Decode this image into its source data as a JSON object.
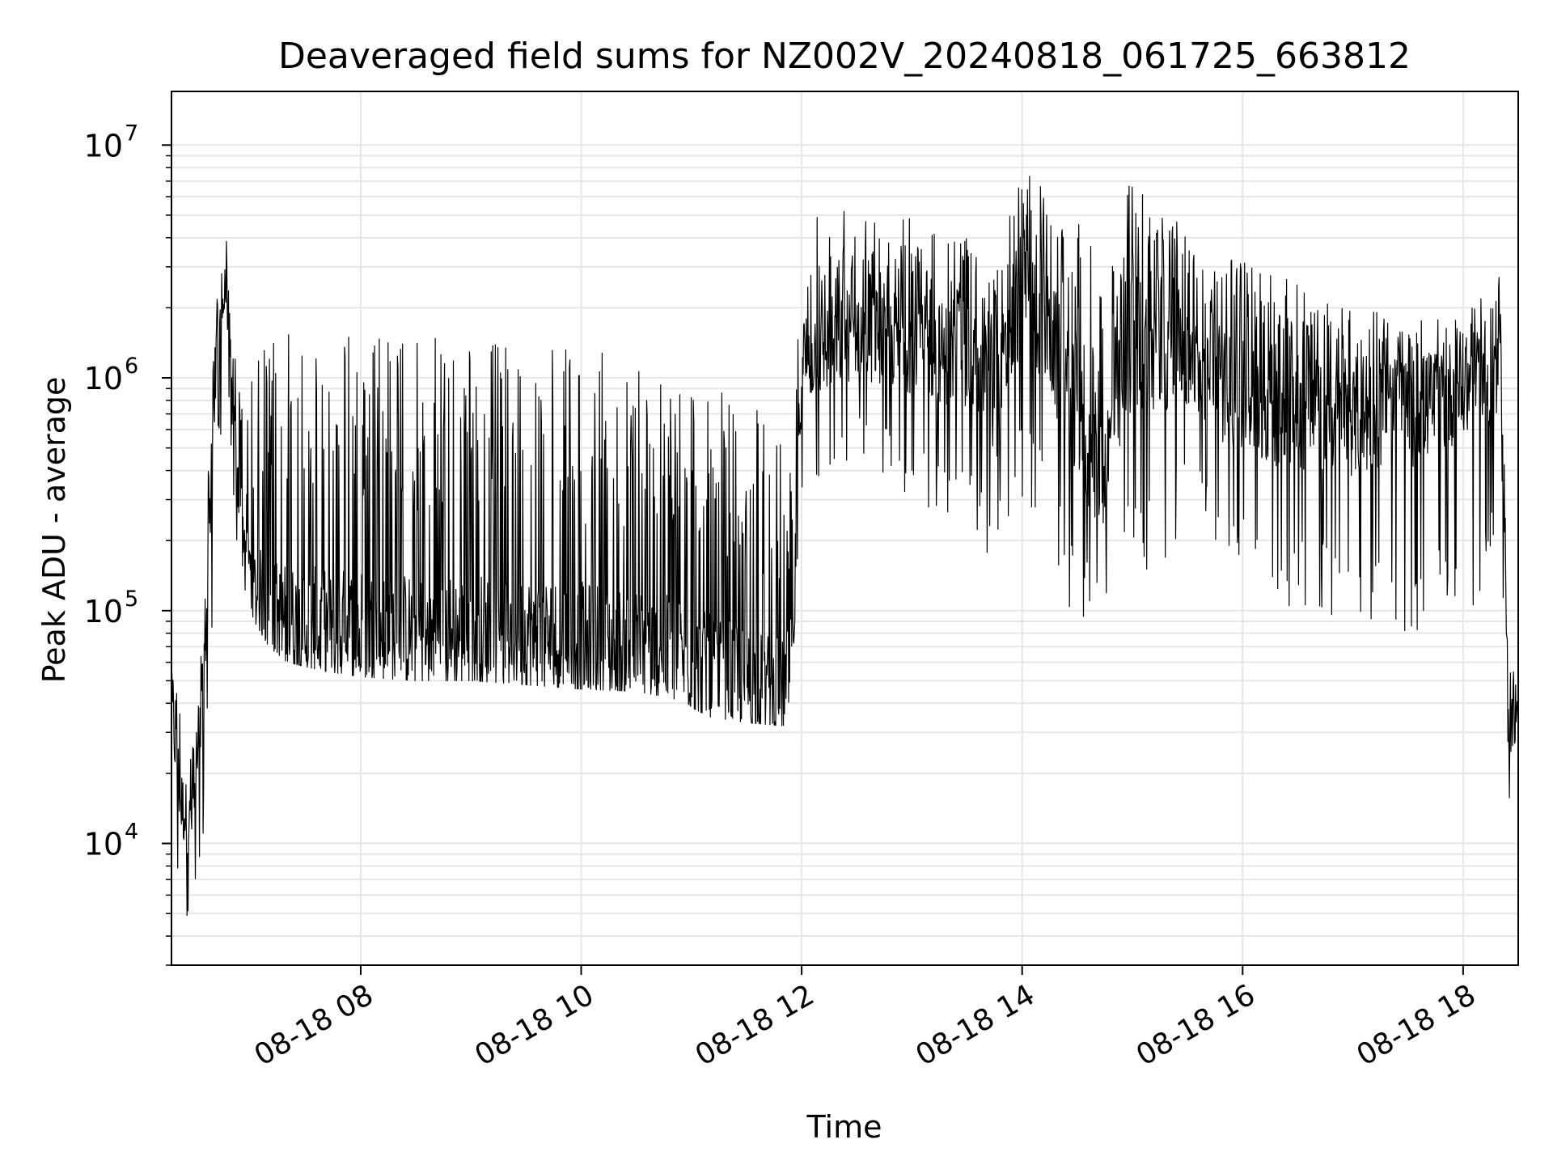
{
  "chart_data": {
    "type": "line",
    "title": "Deaveraged field sums for NZ002V_20240818_061725_663812",
    "xlabel": "Time",
    "ylabel": "Peak ADU - average",
    "x_scale": "time",
    "y_scale": "log",
    "xlim": [
      "2024-08-18 06:17",
      "2024-08-18 18:30"
    ],
    "ylim": [
      3000,
      17000000
    ],
    "x_ticks": [
      {
        "value": "2024-08-18 08:00",
        "label": "08-18 08"
      },
      {
        "value": "2024-08-18 10:00",
        "label": "08-18 10"
      },
      {
        "value": "2024-08-18 12:00",
        "label": "08-18 12"
      },
      {
        "value": "2024-08-18 14:00",
        "label": "08-18 14"
      },
      {
        "value": "2024-08-18 16:00",
        "label": "08-18 16"
      },
      {
        "value": "2024-08-18 18:00",
        "label": "08-18 18"
      }
    ],
    "y_ticks": [
      {
        "value": 10000,
        "base": "10",
        "exp": "4"
      },
      {
        "value": 100000,
        "base": "10",
        "exp": "5"
      },
      {
        "value": 1000000,
        "base": "10",
        "exp": "6"
      },
      {
        "value": 10000000,
        "base": "10",
        "exp": "7"
      }
    ],
    "grid": true,
    "line_color": "#000000",
    "grid_color": "#e6e6e6",
    "series_envelope": {
      "description_free": true,
      "x": [
        "06:17",
        "06:22",
        "06:27",
        "06:32",
        "06:37",
        "06:42",
        "06:47",
        "06:52",
        "06:57",
        "07:02",
        "07:10",
        "07:20",
        "07:40",
        "08:00",
        "08:30",
        "09:00",
        "09:30",
        "10:00",
        "10:30",
        "10:50",
        "11:10",
        "11:30",
        "11:50",
        "11:55",
        "12:00",
        "12:30",
        "13:00",
        "13:30",
        "13:45",
        "14:00",
        "14:15",
        "14:30",
        "14:45",
        "15:00",
        "15:15",
        "15:30",
        "15:45",
        "16:00",
        "16:30",
        "17:00",
        "17:30",
        "18:00",
        "18:20",
        "18:25",
        "18:30"
      ],
      "low": [
        12000,
        5000,
        4500,
        5000,
        30000,
        400000,
        900000,
        150000,
        120000,
        90000,
        70000,
        60000,
        55000,
        52000,
        50000,
        50000,
        48000,
        46000,
        45000,
        42000,
        35000,
        33000,
        32000,
        45000,
        300000,
        400000,
        300000,
        200000,
        150000,
        300000,
        200000,
        80000,
        100000,
        150000,
        120000,
        300000,
        200000,
        120000,
        100000,
        90000,
        80000,
        80000,
        200000,
        15000,
        20000
      ],
      "high": [
        90000,
        40000,
        30000,
        45000,
        500000,
        2500000,
        4500000,
        1200000,
        600000,
        1500000,
        1500000,
        1550000,
        1600000,
        1550000,
        1500000,
        1450000,
        1400000,
        1300000,
        1250000,
        1100000,
        900000,
        800000,
        600000,
        700000,
        5000000,
        6000000,
        5000000,
        4000000,
        3000000,
        9000000,
        6000000,
        5000000,
        3000000,
        8000000,
        6000000,
        4000000,
        3000000,
        3500000,
        2500000,
        2000000,
        1800000,
        1800000,
        3000000,
        60000,
        60000
      ],
      "typical": [
        40000,
        15000,
        12000,
        20000,
        150000,
        1500000,
        2500000,
        400000,
        200000,
        120000,
        100000,
        90000,
        85000,
        85000,
        80000,
        80000,
        80000,
        75000,
        70000,
        65000,
        55000,
        50000,
        45000,
        60000,
        1200000,
        1600000,
        1400000,
        1200000,
        700000,
        2500000,
        1500000,
        600000,
        400000,
        1500000,
        1200000,
        1200000,
        900000,
        800000,
        700000,
        650000,
        700000,
        900000,
        1000000,
        30000,
        35000
      ]
    }
  }
}
